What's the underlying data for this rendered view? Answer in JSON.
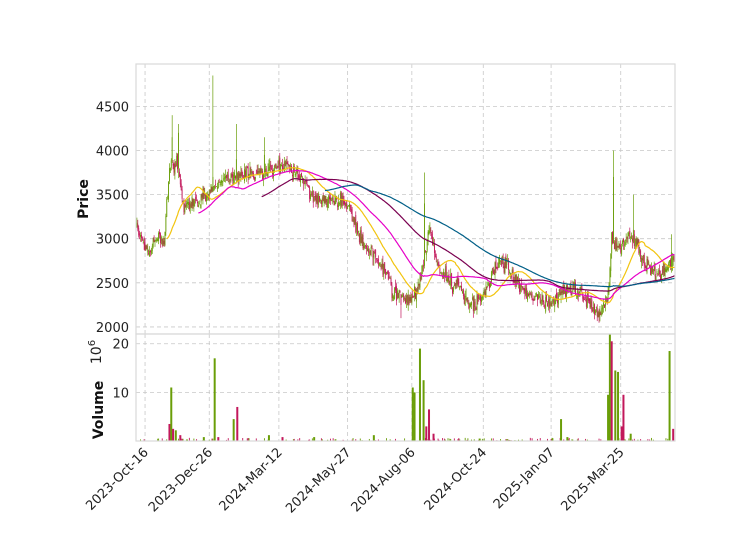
{
  "chart_data": {
    "type": "candlestick",
    "colors": {
      "up": "#6a9e08",
      "down": "#c2185b",
      "ma_5": "#f2c40f",
      "ma_10": "#e600c8",
      "ma_20": "#7a0050",
      "ma_30": "#005f87",
      "grid": "#c8c8c8",
      "frame": "#d9d9d9"
    },
    "price_panel": {
      "ylabel": "Price",
      "ylim": [
        1920,
        4980
      ],
      "yticks": [
        2000,
        2500,
        3000,
        3500,
        4000,
        4500
      ],
      "grid": true
    },
    "volume_panel": {
      "ylabel": "Volume",
      "scale_label": "10",
      "scale_exponent": "6",
      "ylim": [
        0,
        22
      ],
      "yticks": [
        10,
        20
      ],
      "grid": true
    },
    "x_axis": {
      "date_range": [
        "2023-10-06",
        "2025-05-24"
      ],
      "tick_labels": [
        "2023-Oct-16",
        "2023-Dec-26",
        "2024-Mar-12",
        "2024-May-27",
        "2024-Aug-06",
        "2024-Oct-24",
        "2025-Jan-07",
        "2025-Mar-25"
      ],
      "tick_dates": [
        "2023-10-16",
        "2023-12-26",
        "2024-03-12",
        "2024-05-27",
        "2024-08-06",
        "2024-10-24",
        "2025-01-07",
        "2025-03-25"
      ]
    },
    "price_keypoints": [
      [
        "2023-10-06",
        3200
      ],
      [
        "2023-10-12",
        2950
      ],
      [
        "2023-10-22",
        2850
      ],
      [
        "2023-10-30",
        3050
      ],
      [
        "2023-11-06",
        2950
      ],
      [
        "2023-11-12",
        3800
      ],
      [
        "2023-11-20",
        3850
      ],
      [
        "2023-11-28",
        3350
      ],
      [
        "2023-12-08",
        3400
      ],
      [
        "2023-12-20",
        3500
      ],
      [
        "2024-01-05",
        3650
      ],
      [
        "2024-01-20",
        3700
      ],
      [
        "2024-02-05",
        3750
      ],
      [
        "2024-02-20",
        3720
      ],
      [
        "2024-03-05",
        3800
      ],
      [
        "2024-03-20",
        3850
      ],
      [
        "2024-04-05",
        3700
      ],
      [
        "2024-04-20",
        3450
      ],
      [
        "2024-05-10",
        3450
      ],
      [
        "2024-05-27",
        3400
      ],
      [
        "2024-06-10",
        3000
      ],
      [
        "2024-06-25",
        2800
      ],
      [
        "2024-07-10",
        2600
      ],
      [
        "2024-07-15",
        2400
      ],
      [
        "2024-07-25",
        2350
      ],
      [
        "2024-08-05",
        2300
      ],
      [
        "2024-08-15",
        2500
      ],
      [
        "2024-08-25",
        3100
      ],
      [
        "2024-09-05",
        2650
      ],
      [
        "2024-09-15",
        2500
      ],
      [
        "2024-09-28",
        2450
      ],
      [
        "2024-10-08",
        2250
      ],
      [
        "2024-10-20",
        2300
      ],
      [
        "2024-11-01",
        2550
      ],
      [
        "2024-11-10",
        2750
      ],
      [
        "2024-11-20",
        2700
      ],
      [
        "2024-12-01",
        2500
      ],
      [
        "2024-12-15",
        2350
      ],
      [
        "2025-01-01",
        2250
      ],
      [
        "2025-01-15",
        2350
      ],
      [
        "2025-02-01",
        2450
      ],
      [
        "2025-02-15",
        2300
      ],
      [
        "2025-03-01",
        2150
      ],
      [
        "2025-03-10",
        2300
      ],
      [
        "2025-03-15",
        3000
      ],
      [
        "2025-03-25",
        2900
      ],
      [
        "2025-04-05",
        3050
      ],
      [
        "2025-04-15",
        2850
      ],
      [
        "2025-04-25",
        2650
      ],
      [
        "2025-05-05",
        2600
      ],
      [
        "2025-05-15",
        2700
      ],
      [
        "2025-05-20",
        2750
      ]
    ],
    "price_spikes": [
      [
        "2023-11-15",
        4400,
        4150
      ],
      [
        "2023-11-22",
        4300,
        4200
      ],
      [
        "2023-12-30",
        4850,
        3700
      ],
      [
        "2024-01-25",
        4300,
        3900
      ],
      [
        "2024-02-25",
        4150,
        3950
      ],
      [
        "2024-07-25",
        2100,
        2250
      ],
      [
        "2024-08-20",
        3750,
        3400
      ],
      [
        "2025-03-17",
        4000,
        3700
      ],
      [
        "2025-04-08",
        3500,
        3100
      ],
      [
        "2025-05-20",
        3050,
        2850
      ]
    ],
    "volume_events": [
      [
        "2023-11-12",
        3.5,
        "down"
      ],
      [
        "2023-11-14",
        11,
        "up"
      ],
      [
        "2023-11-16",
        2.5,
        "down"
      ],
      [
        "2023-11-19",
        2.2,
        "up"
      ],
      [
        "2023-11-24",
        1.2,
        "down"
      ],
      [
        "2023-12-20",
        0.8,
        "up"
      ],
      [
        "2024-01-01",
        17,
        "up"
      ],
      [
        "2024-01-05",
        0.8,
        "down"
      ],
      [
        "2024-01-22",
        4.5,
        "up"
      ],
      [
        "2024-01-26",
        7,
        "down"
      ],
      [
        "2024-03-01",
        1.2,
        "up"
      ],
      [
        "2024-03-16",
        0.8,
        "down"
      ],
      [
        "2024-04-20",
        0.8,
        "up"
      ],
      [
        "2024-06-25",
        1.2,
        "up"
      ],
      [
        "2024-08-07",
        11,
        "up"
      ],
      [
        "2024-08-09",
        10,
        "up"
      ],
      [
        "2024-08-15",
        19,
        "up"
      ],
      [
        "2024-08-19",
        12.5,
        "up"
      ],
      [
        "2024-08-22",
        3,
        "down"
      ],
      [
        "2024-08-25",
        6.5,
        "down"
      ],
      [
        "2024-08-30",
        1.5,
        "down"
      ],
      [
        "2024-10-20",
        0.5,
        "up"
      ],
      [
        "2025-01-18",
        4.5,
        "up"
      ],
      [
        "2025-01-25",
        0.8,
        "up"
      ],
      [
        "2025-03-11",
        9.5,
        "up"
      ],
      [
        "2025-03-13",
        22,
        "up"
      ],
      [
        "2025-03-15",
        20.5,
        "down"
      ],
      [
        "2025-03-19",
        14.5,
        "up"
      ],
      [
        "2025-03-22",
        14.2,
        "up"
      ],
      [
        "2025-03-26",
        3,
        "down"
      ],
      [
        "2025-03-28",
        9.5,
        "down"
      ],
      [
        "2025-04-05",
        1.5,
        "up"
      ],
      [
        "2025-05-18",
        18.5,
        "up"
      ],
      [
        "2025-05-22",
        2.5,
        "down"
      ]
    ],
    "moving_averages": [
      5,
      10,
      20,
      30
    ],
    "seed": 12345
  }
}
